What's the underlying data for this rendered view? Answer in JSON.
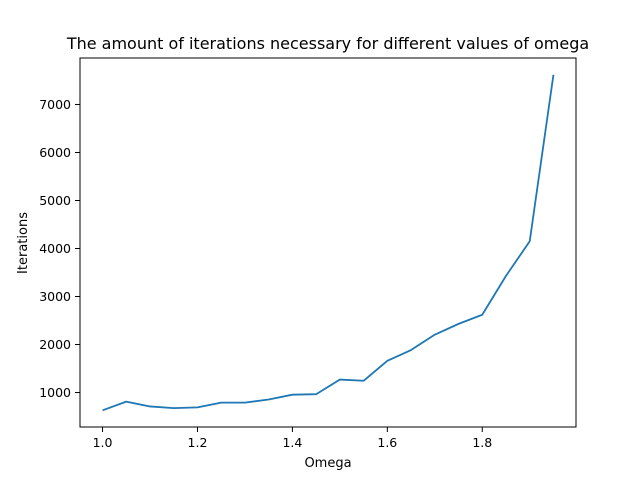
{
  "chart_data": {
    "type": "line",
    "title": "The amount of iterations necessary for different values of omega",
    "xlabel": "Omega",
    "ylabel": "Iterations",
    "x": [
      1.0,
      1.05,
      1.1,
      1.15,
      1.2,
      1.25,
      1.3,
      1.35,
      1.4,
      1.45,
      1.5,
      1.55,
      1.6,
      1.65,
      1.7,
      1.75,
      1.8,
      1.85,
      1.9,
      1.95
    ],
    "series": [
      {
        "color": "#1f77b4",
        "values": [
          630,
          810,
          710,
          675,
          690,
          790,
          790,
          855,
          955,
          965,
          1270,
          1245,
          1660,
          1885,
          2205,
          2430,
          2620,
          3430,
          4150,
          7620
        ]
      }
    ],
    "xlim": [
      0.9525,
      1.9975
    ],
    "ylim": [
      282,
      7968
    ],
    "xticks": [
      "1.0",
      "1.2",
      "1.4",
      "1.6",
      "1.8"
    ],
    "yticks": [
      "1000",
      "2000",
      "3000",
      "4000",
      "5000",
      "6000",
      "7000"
    ],
    "grid": false
  }
}
